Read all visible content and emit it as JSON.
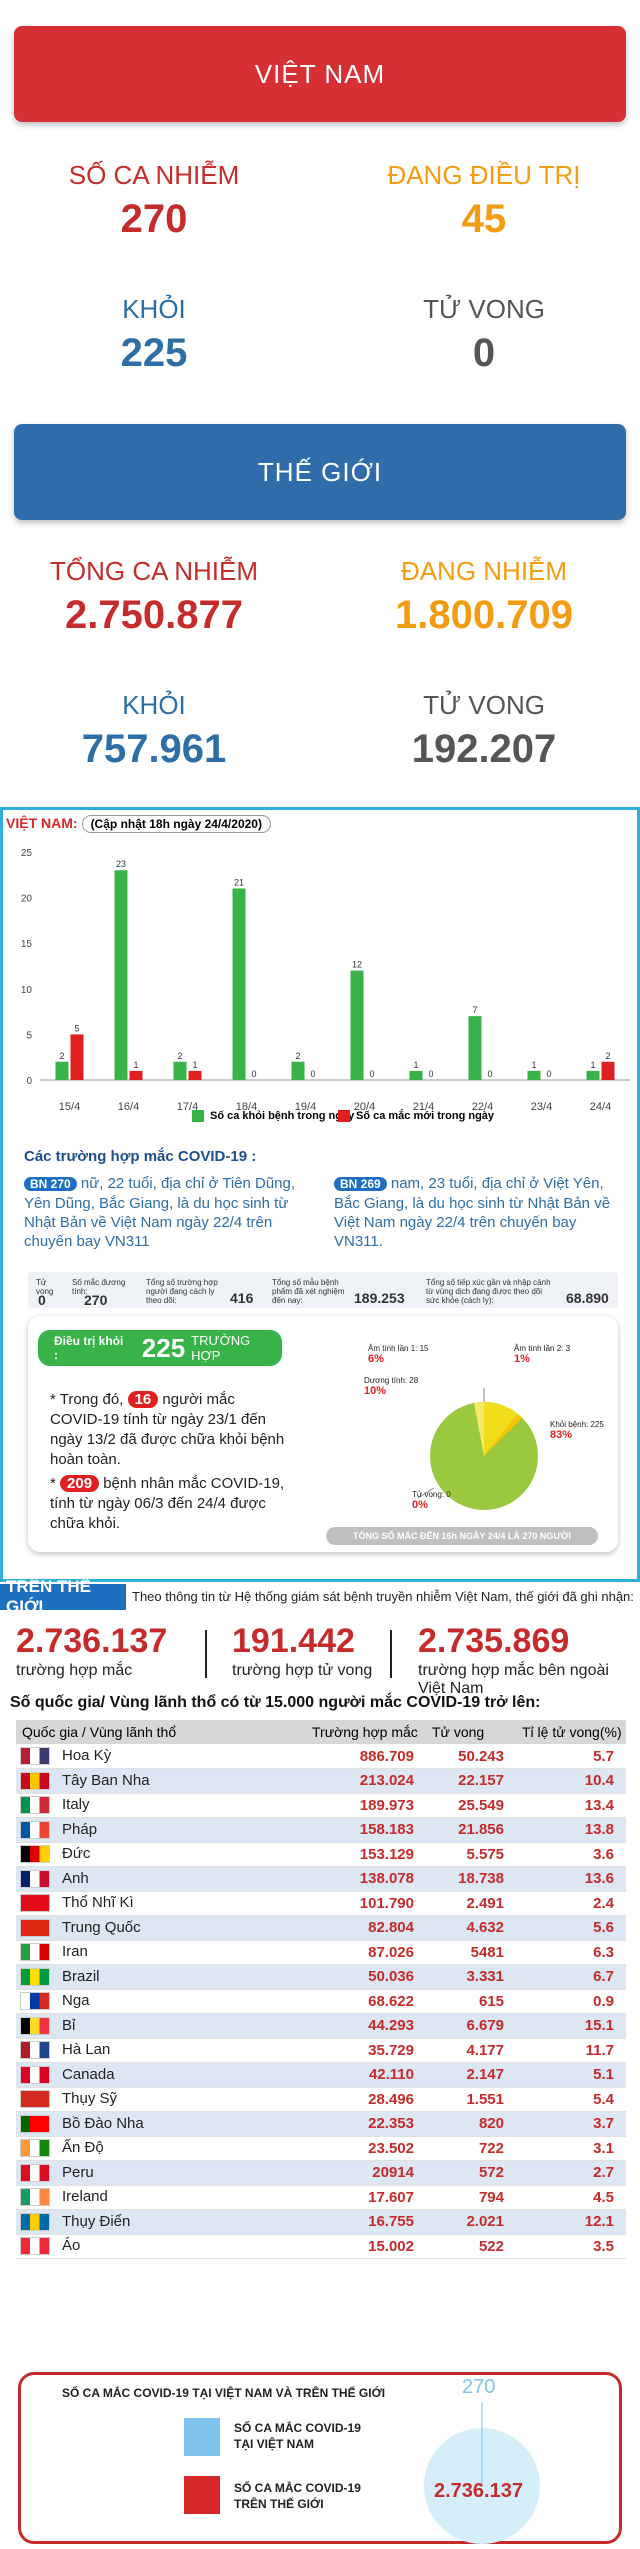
{
  "vn": {
    "title": "VIỆT NAM",
    "infected_label": "SỐ CA NHIỄM",
    "infected": "270",
    "treating_label": "ĐANG ĐIỀU TRỊ",
    "treating": "45",
    "recovered_label": "KHỎI",
    "recovered": "225",
    "deaths_label": "TỬ VONG",
    "deaths": "0"
  },
  "world": {
    "title": "THẾ GIỚI",
    "infected_label": "TỔNG CA NHIỄM",
    "infected": "2.750.877",
    "active_label": "ĐANG NHIỄM",
    "active": "1.800.709",
    "recovered_label": "KHỎI",
    "recovered": "757.961",
    "deaths_label": "TỬ VONG",
    "deaths": "192.207"
  },
  "colors": {
    "red": "#c62b2b",
    "orange": "#f39c12",
    "blue": "#2e6ea6",
    "green": "#37b34a",
    "banner_red": "#d62f34",
    "banner_blue": "#2f6daa"
  },
  "info": {
    "vn_label": "VIỆT NAM:",
    "update": "(Cập nhật 18h ngày 24/4/2020)",
    "legend_recovered": "Số ca khỏi bệnh trong ngày",
    "legend_new": "Số ca mắc mới trong ngày",
    "cases_heading": "Các trường hợp mắc COVID-19 :",
    "case1_id": "BN 270",
    "case1_text": "nữ, 22 tuổi, địa chỉ ở Tiên Dũng, Yên Dũng, Bắc Giang, là du học sinh từ Nhật Bản về Việt Nam ngày 22/4 trên chuyến bay VN311",
    "case2_id": "BN 269",
    "case2_text": "nam, 23 tuổi, địa chỉ ở Việt Yên, Bắc Giang, là du học sinh từ Nhật Bản về Việt Nam ngày 22/4 trên chuyến bay VN311.",
    "s1_l": "Tử vong",
    "s1_v": "0",
    "s2_l": "Số mắc đương tính:",
    "s2_v": "270",
    "s3_l": "Tổng số trường hợp người đang cách ly theo dõi:",
    "s3_v": "416",
    "s4_l": "Tổng số mẫu bệnh phẩm đã xét nghiệm đến nay:",
    "s4_v": "189.253",
    "s5_l": "Tổng số tiếp xúc gần và nhập cảnh từ vùng dịch đang được theo dõi sức khỏe (cách ly):",
    "s5_v": "68.890",
    "pill_label": "Điều trị khỏi :",
    "pill_value": "225",
    "pill_unit": "TRƯỜNG HỢP",
    "note1_a": "* Trong đó,",
    "note1_num": "16",
    "note1_b": "người mắc COVID-19 tính từ ngày 23/1 đến ngày 13/2 đã được chữa khỏi bệnh hoàn toàn.",
    "note2_num": "209",
    "note2_b": "bệnh nhân mắc COVID-19, tính từ ngày 06/3 đến 24/4 được chữa khỏi.",
    "pie_a": "Âm tính lần 1: 15",
    "pie_a_p": "6%",
    "pie_b": "Âm tính lần 2: 3",
    "pie_b_p": "1%",
    "pie_c": "Dương tính: 28",
    "pie_c_p": "10%",
    "pie_d": "Khỏi bệnh: 225",
    "pie_d_p": "83%",
    "pie_e": "Tử vong: 0",
    "pie_e_p": "0%",
    "total_note": "TỔNG SỐ MẮC ĐẾN 16h NGÀY 24/4 LÀ 270 NGƯỜI"
  },
  "chart_data": {
    "type": "bar",
    "categories": [
      "15/4",
      "16/4",
      "17/4",
      "18/4",
      "19/4",
      "20/4",
      "21/4",
      "22/4",
      "23/4",
      "24/4"
    ],
    "series": [
      {
        "name": "Số ca khỏi bệnh trong ngày",
        "values": [
          2,
          23,
          2,
          21,
          2,
          12,
          1,
          7,
          1,
          1
        ]
      },
      {
        "name": "Số ca mắc mới trong ngày",
        "values": [
          5,
          1,
          1,
          0,
          0,
          0,
          0,
          0,
          0,
          2
        ]
      }
    ],
    "yticks": [
      "0",
      "5",
      "10",
      "15",
      "20",
      "25"
    ],
    "ylim": [
      0,
      25
    ],
    "legend": "bottom"
  },
  "wg": {
    "tag": "TRÊN THẾ GIỚI",
    "note": "Theo thông tin từ Hệ thống giám sát bệnh truyền nhiễm Việt Nam, thế giới đã ghi nhận:",
    "v1": "2.736.137",
    "l1": "trường hợp mắc",
    "v2": "191.442",
    "l2": "trường hợp tử vong",
    "v3": "2.735.869",
    "l3": "trường hợp mắc bên ngoài Việt Nam",
    "table_title": "Số quốc gia/ Vùng lãnh thổ có từ 15.000 người mắc COVID-19 trở lên:",
    "headers": [
      "Quốc gia / Vùng lãnh thổ",
      "Trường hợp mắc",
      "Tử vong",
      "Tỉ lệ tử vong(%)"
    ],
    "rows": [
      [
        "Hoa Kỳ",
        "886.709",
        "50.243",
        "5.7"
      ],
      [
        "Tây Ban Nha",
        "213.024",
        "22.157",
        "10.4"
      ],
      [
        "Italy",
        "189.973",
        "25.549",
        "13.4"
      ],
      [
        "Pháp",
        "158.183",
        "21.856",
        "13.8"
      ],
      [
        "Đức",
        "153.129",
        "5.575",
        "3.6"
      ],
      [
        "Anh",
        "138.078",
        "18.738",
        "13.6"
      ],
      [
        "Thổ Nhĩ Kì",
        "101.790",
        "2.491",
        "2.4"
      ],
      [
        "Trung Quốc",
        "82.804",
        "4.632",
        "5.6"
      ],
      [
        "Iran",
        "87.026",
        "5481",
        "6.3"
      ],
      [
        "Brazil",
        "50.036",
        "3.331",
        "6.7"
      ],
      [
        "Nga",
        "68.622",
        "615",
        "0.9"
      ],
      [
        "Bỉ",
        "44.293",
        "6.679",
        "15.1"
      ],
      [
        "Hà Lan",
        "35.729",
        "4.177",
        "11.7"
      ],
      [
        "Canada",
        "42.110",
        "2.147",
        "5.1"
      ],
      [
        "Thụy Sỹ",
        "28.496",
        "1.551",
        "5.4"
      ],
      [
        "Bồ Đào Nha",
        "22.353",
        "820",
        "3.7"
      ],
      [
        "Ấn Độ",
        "23.502",
        "722",
        "3.1"
      ],
      [
        "Peru",
        "20914",
        "572",
        "2.7"
      ],
      [
        "Ireland",
        "17.607",
        "794",
        "4.5"
      ],
      [
        "Thụy Điển",
        "16.755",
        "2.021",
        "12.1"
      ],
      [
        "Áo",
        "15.002",
        "522",
        "3.5"
      ]
    ],
    "flag_colors": [
      [
        "#b22234",
        "#fff",
        "#3c3b6e"
      ],
      [
        "#c60b1e",
        "#ffc400",
        "#c60b1e"
      ],
      [
        "#009246",
        "#fff",
        "#ce2b37"
      ],
      [
        "#0055a4",
        "#fff",
        "#ef4135"
      ],
      [
        "#000",
        "#dd0000",
        "#ffce00"
      ],
      [
        "#012169",
        "#fff",
        "#c8102e"
      ],
      [
        "#e30a17",
        "#e30a17",
        "#e30a17"
      ],
      [
        "#de2910",
        "#de2910",
        "#de2910"
      ],
      [
        "#239f40",
        "#fff",
        "#da0000"
      ],
      [
        "#009c3b",
        "#ffdf00",
        "#009c3b"
      ],
      [
        "#fff",
        "#0039a6",
        "#d52b1e"
      ],
      [
        "#000",
        "#fdda24",
        "#ef3340"
      ],
      [
        "#ae1c28",
        "#fff",
        "#21468b"
      ],
      [
        "#d80621",
        "#fff",
        "#d80621"
      ],
      [
        "#d52b1e",
        "#d52b1e",
        "#d52b1e"
      ],
      [
        "#006600",
        "#ff0000",
        "#ff0000"
      ],
      [
        "#ff9933",
        "#fff",
        "#138808"
      ],
      [
        "#d91023",
        "#fff",
        "#d91023"
      ],
      [
        "#169b62",
        "#fff",
        "#ff883e"
      ],
      [
        "#006aa7",
        "#fecc00",
        "#006aa7"
      ],
      [
        "#ed2939",
        "#fff",
        "#ed2939"
      ]
    ],
    "foot_title": "SỐ CA MẮC COVID-19 TẠI VIỆT NAM VÀ TRÊN THẾ GIỚI",
    "foot_vn_label1": "SỐ CA MẮC COVID-19",
    "foot_vn_label2": "TẠI VIỆT NAM",
    "foot_w_label1": "SỐ CA MẮC COVID-19",
    "foot_w_label2": "TRÊN THẾ GIỚI",
    "foot_vn_val": "270",
    "foot_w_val": "2.736.137"
  }
}
